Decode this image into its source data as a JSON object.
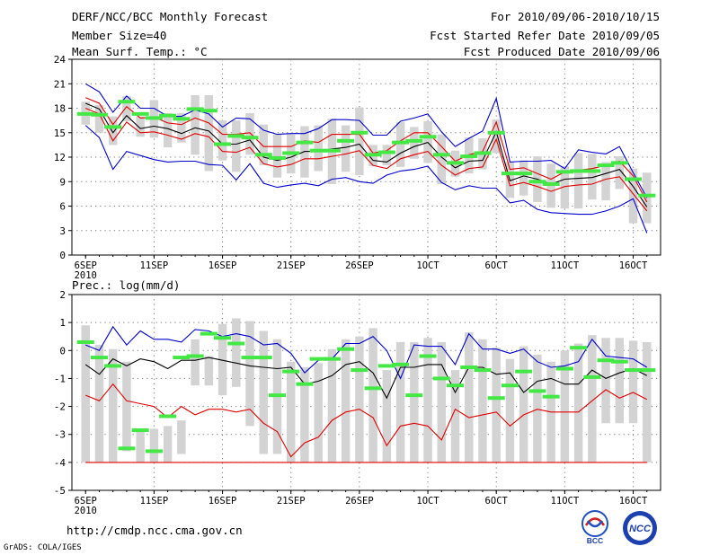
{
  "header": {
    "title": "DERF/NCC/BCC Monthly Forecast",
    "member_size": "Member Size=40",
    "variable": "Mean Surf. Temp.: °C",
    "period": "For 2010/09/06-2010/10/15",
    "started": "Fcst Started Refer Date 2010/09/05",
    "produced": "Fcst Produced Date 2010/09/06"
  },
  "footer": {
    "url": "http://cmdp.ncc.cma.gov.cn",
    "grads": "GrADS: COLA/IGES",
    "logo_bcc": "BCC",
    "logo_ncc": "NCC"
  },
  "colors": {
    "max": "#0000cc",
    "mean": "#000000",
    "upper": "#e00000",
    "lower": "#e00000",
    "box": "#d3d3d3",
    "obs": "#44e844",
    "grid": "#777777"
  },
  "chart_data": [
    {
      "type": "box",
      "title": "Mean Surf. Temp.: °C",
      "xlabel": "",
      "ylabel": "°C",
      "ylim": [
        0,
        24
      ],
      "yticks": [
        0,
        3,
        6,
        9,
        12,
        15,
        18,
        21,
        24
      ],
      "xtick_labels": [
        "6SEP",
        "11SEP",
        "16SEP",
        "21SEP",
        "26SEP",
        "1OCT",
        "6OCT",
        "11OCT",
        "16OCT"
      ],
      "year_label": "2010",
      "grid": true,
      "series": [
        {
          "name": "max",
          "values": [
            21,
            20,
            17.5,
            19.5,
            18,
            18,
            17,
            17,
            17.8,
            17.3,
            15.7,
            16.8,
            16.7,
            15.3,
            14.8,
            14.9,
            14.9,
            15.5,
            16.6,
            16.6,
            16.5,
            14.7,
            14.7,
            16.4,
            16.8,
            17.3,
            15.1,
            13.3,
            14.3,
            15.2,
            19.2,
            11.4,
            11.5,
            11.5,
            11.6,
            10.6,
            12.9,
            12.6,
            12.4,
            13.3,
            10.1,
            7
          ]
        },
        {
          "name": "upper",
          "values": [
            19.3,
            18.6,
            16,
            18.2,
            16.8,
            16.9,
            16.2,
            16,
            16.8,
            16.2,
            14.8,
            14.8,
            15,
            13.3,
            13.3,
            13.3,
            14,
            13.8,
            14.8,
            14.8,
            14.8,
            12.5,
            12.8,
            14,
            15,
            15,
            13.3,
            11.5,
            12.3,
            12.7,
            16.3,
            10.5,
            10.7,
            10,
            9.3,
            10.2,
            10.4,
            10.6,
            11,
            11.5,
            9.7,
            6.5
          ]
        },
        {
          "name": "mean",
          "values": [
            18.6,
            17.9,
            15,
            17.1,
            15.5,
            15.8,
            15.5,
            14.9,
            15.6,
            15.2,
            13.6,
            13.6,
            14.1,
            12,
            11.6,
            12,
            12.7,
            12.7,
            13,
            13.2,
            13.6,
            11.6,
            11.4,
            12.5,
            13.3,
            13.8,
            12,
            10.7,
            11.5,
            11.6,
            15.1,
            9.1,
            9.7,
            9.3,
            8.7,
            9.3,
            9.4,
            9.5,
            10,
            10.5,
            8.4,
            5.9
          ]
        },
        {
          "name": "lower",
          "values": [
            18,
            17.3,
            14,
            16.3,
            15,
            15.1,
            14.7,
            14.2,
            14.9,
            14.5,
            12.7,
            12.6,
            13.2,
            11.2,
            10.8,
            11.1,
            11.8,
            11.8,
            12.1,
            12.4,
            12.8,
            11,
            10.6,
            11.8,
            12.3,
            12.7,
            11,
            9.8,
            10.6,
            10.8,
            14.2,
            8.5,
            8.9,
            8.4,
            7.8,
            8.4,
            8.6,
            8.7,
            9.3,
            9.6,
            7.5,
            5.4
          ]
        },
        {
          "name": "min",
          "values": [
            15.9,
            14.4,
            10.5,
            12.7,
            12.2,
            11.7,
            11.4,
            11.5,
            11.5,
            11.1,
            11,
            9.2,
            11.2,
            8.8,
            8.3,
            8.6,
            8.8,
            8.5,
            9.3,
            9.5,
            9,
            8.8,
            9.8,
            10.3,
            10.5,
            10.9,
            8.9,
            8,
            8.5,
            8.2,
            8.2,
            6.4,
            6.7,
            5.6,
            5.2,
            5.1,
            5,
            5,
            5.4,
            6,
            6.9,
            2.7
          ]
        },
        {
          "name": "box_high",
          "values": [
            18.8,
            18.4,
            17,
            19.5,
            17,
            19,
            17.4,
            17.4,
            19.6,
            19.6,
            16.5,
            16.5,
            17.4,
            16,
            14.8,
            14.8,
            15.8,
            15.9,
            16.7,
            15.9,
            18.1,
            13.5,
            13.5,
            16.3,
            15.7,
            16.4,
            14.8,
            12.8,
            14.4,
            14.3,
            16.6,
            11.4,
            11.6,
            12.1,
            11.2,
            10.9,
            12.5,
            12.4,
            11.4,
            12.1,
            10.6,
            10.1
          ]
        },
        {
          "name": "box_low",
          "values": [
            16,
            15,
            13.5,
            16.4,
            14.5,
            14.4,
            13.2,
            13.8,
            12.3,
            10.3,
            11.6,
            10.2,
            12.3,
            11,
            9.5,
            10,
            9.5,
            10.3,
            8.7,
            10.2,
            9.8,
            10.9,
            11,
            10.8,
            11.8,
            11.3,
            8.7,
            9.6,
            10,
            10.5,
            12.5,
            7,
            7.3,
            6.5,
            5.8,
            5.7,
            5.7,
            6.8,
            6.7,
            8.1,
            3.9,
            3.9
          ]
        },
        {
          "name": "observed",
          "values": [
            17.3,
            17.2,
            15.7,
            18.8,
            17.3,
            16.8,
            17.1,
            16.7,
            17.9,
            17.7,
            13.6,
            14.6,
            14.4,
            12.3,
            11.9,
            12.5,
            13.8,
            12.8,
            12.8,
            14,
            15,
            12.3,
            12.6,
            13.8,
            14,
            14.5,
            12.3,
            11.3,
            12.1,
            12.5,
            15,
            10,
            10,
            9,
            8.7,
            10.2,
            10.3,
            10.3,
            11,
            11.3,
            9.3,
            7.3
          ]
        }
      ]
    },
    {
      "type": "box",
      "title": "Prec.: log(mm/d)",
      "xlabel": "",
      "ylabel": "log(mm/d)",
      "ylim": [
        -5,
        2
      ],
      "yticks": [
        -5,
        -4,
        -3,
        -2,
        -1,
        0,
        1,
        2
      ],
      "xtick_labels": [
        "6SEP",
        "11SEP",
        "16SEP",
        "21SEP",
        "26SEP",
        "1OCT",
        "6OCT",
        "11OCT",
        "16OCT"
      ],
      "year_label": "2010",
      "grid": true,
      "series": [
        {
          "name": "max",
          "values": [
            0.2,
            0,
            0.85,
            0.2,
            0.7,
            0.4,
            0.4,
            0.3,
            0.75,
            0.7,
            0.5,
            0.6,
            0.5,
            0.2,
            0.25,
            -0.1,
            -0.8,
            -0.35,
            -0.3,
            0.25,
            0.25,
            0.5,
            0,
            -1,
            0.2,
            0.15,
            0.15,
            -0.5,
            0.6,
            0.05,
            0.05,
            -0.1,
            0.05,
            -0.4,
            -0.6,
            -0.55,
            -0.4,
            0.4,
            -0.2,
            -0.25,
            -0.3,
            -0.6
          ]
        },
        {
          "name": "mean",
          "values": [
            -0.5,
            -0.85,
            -0.3,
            -0.55,
            -0.3,
            -0.4,
            -0.65,
            -0.35,
            -0.35,
            -0.25,
            -0.35,
            -0.45,
            -0.55,
            -0.6,
            -0.65,
            -0.6,
            -1.2,
            -1.1,
            -0.9,
            -0.5,
            -0.4,
            -0.8,
            -1.7,
            -0.6,
            -0.6,
            -0.5,
            -0.5,
            -1.5,
            -0.6,
            -0.6,
            -0.85,
            -0.8,
            -1.5,
            -1.1,
            -1,
            -1.2,
            -1.2,
            -0.7,
            -1,
            -0.8,
            -0.65,
            -0.9
          ]
        },
        {
          "name": "lower",
          "values": [
            -1.6,
            -1.8,
            -1.2,
            -1.8,
            -1.9,
            -2,
            -2.4,
            -2,
            -2.3,
            -2.1,
            -2.1,
            -2.2,
            -2.1,
            -2.6,
            -2.9,
            -3.8,
            -3.3,
            -3.1,
            -2.5,
            -2.2,
            -2.1,
            -2.4,
            -3.4,
            -2.7,
            -2.6,
            -2.7,
            -3.2,
            -2.1,
            -2.4,
            -2.3,
            -2.2,
            -2.7,
            -2.3,
            -2.1,
            -2.2,
            -2.2,
            -2.2,
            -1.8,
            -1.4,
            -1.7,
            -1.5,
            -1.75
          ]
        },
        {
          "name": "min",
          "values": [
            -4,
            -4,
            -4,
            -4,
            -4,
            -4,
            -4,
            -4,
            -4,
            -4,
            -4,
            -4,
            -4,
            -4,
            -4,
            -4,
            -4,
            -4,
            -4,
            -4,
            -4,
            -4,
            -4,
            -4,
            -4,
            -4,
            -4,
            -4,
            -4,
            -4,
            -4,
            -4,
            -4,
            -4,
            -4,
            -4,
            -4,
            -4,
            -4,
            -4,
            -4,
            -4
          ]
        },
        {
          "name": "box_high",
          "values": [
            0.9,
            0.2,
            0.05,
            -0.4,
            -2.8,
            -2.8,
            -2.7,
            -2.5,
            0.4,
            -0.2,
            0.95,
            1.15,
            1.05,
            0.7,
            0.4,
            -0.4,
            -0.6,
            -0.45,
            0.05,
            0.4,
            0.5,
            0.8,
            -0.7,
            0.3,
            0.3,
            0.45,
            0.3,
            -0.7,
            0.65,
            0.4,
            0.1,
            -0.3,
            0.15,
            -0.15,
            -0.4,
            0,
            0.25,
            0.55,
            0.45,
            0.45,
            0.35,
            0.3
          ]
        },
        {
          "name": "box_low",
          "values": [
            -4,
            -4,
            -4,
            -3.6,
            -4,
            -4,
            -4,
            -3.7,
            -1.25,
            -1.25,
            -1.6,
            -1.3,
            -2.7,
            -3.7,
            -3.7,
            -4,
            -4,
            -4,
            -4,
            -4,
            -4,
            -4,
            -4,
            -4,
            -4,
            -4,
            -4,
            -4,
            -4,
            -4,
            -4,
            -4,
            -4,
            -4,
            -4,
            -4,
            -4,
            -4,
            -2.6,
            -2.6,
            -2.6,
            -4
          ]
        },
        {
          "name": "observed",
          "values": [
            0.3,
            -0.25,
            -0.55,
            -3.5,
            -2.85,
            -3.6,
            -2.35,
            -0.25,
            -0.2,
            0.6,
            0.45,
            0.25,
            -0.25,
            -0.25,
            -1.6,
            -0.75,
            -1.2,
            -0.3,
            -0.3,
            0.05,
            -0.7,
            -1.35,
            -0.55,
            -0.5,
            -1.6,
            -0.2,
            -1,
            -1.25,
            -0.6,
            -0.7,
            -1.7,
            -1.25,
            -0.75,
            -1.45,
            -1.65,
            -0.65,
            0.1,
            -0.95,
            -0.35,
            -0.4,
            -0.7,
            -0.7
          ]
        }
      ]
    }
  ]
}
